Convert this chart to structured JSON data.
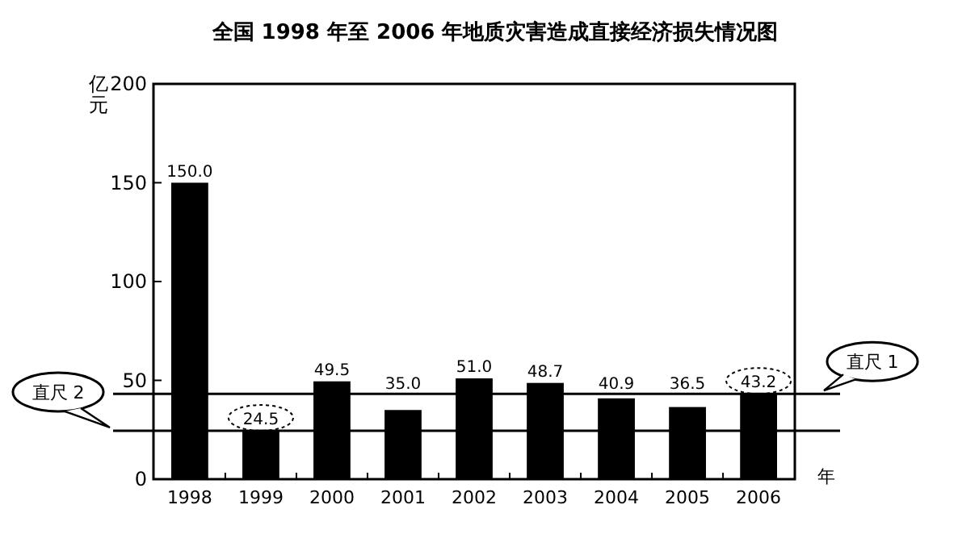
{
  "chart_data": {
    "type": "bar",
    "title": "全国 1998 年至 2006 年地质灾害造成直接经济损失情况图",
    "ylabel": "亿元",
    "xlabel": "年",
    "categories": [
      "1998",
      "1999",
      "2000",
      "2001",
      "2002",
      "2003",
      "2004",
      "2005",
      "2006"
    ],
    "values": [
      150.0,
      24.5,
      49.5,
      35.0,
      51.0,
      48.7,
      40.9,
      36.5,
      43.2
    ],
    "value_labels": [
      "150.0",
      "24.5",
      "49.5",
      "35.0",
      "51.0",
      "48.7",
      "40.9",
      "36.5",
      "43.2"
    ],
    "color": "#000000",
    "ylim": [
      0,
      200
    ],
    "yticks": [
      0,
      50,
      100,
      150,
      200
    ],
    "grid": false,
    "ref_lines": [
      {
        "axis": "y",
        "value": 43.2,
        "label": "直尺 1",
        "color": "#000000"
      },
      {
        "axis": "y",
        "value": 24.5,
        "label": "直尺 2",
        "color": "#000000"
      }
    ]
  }
}
